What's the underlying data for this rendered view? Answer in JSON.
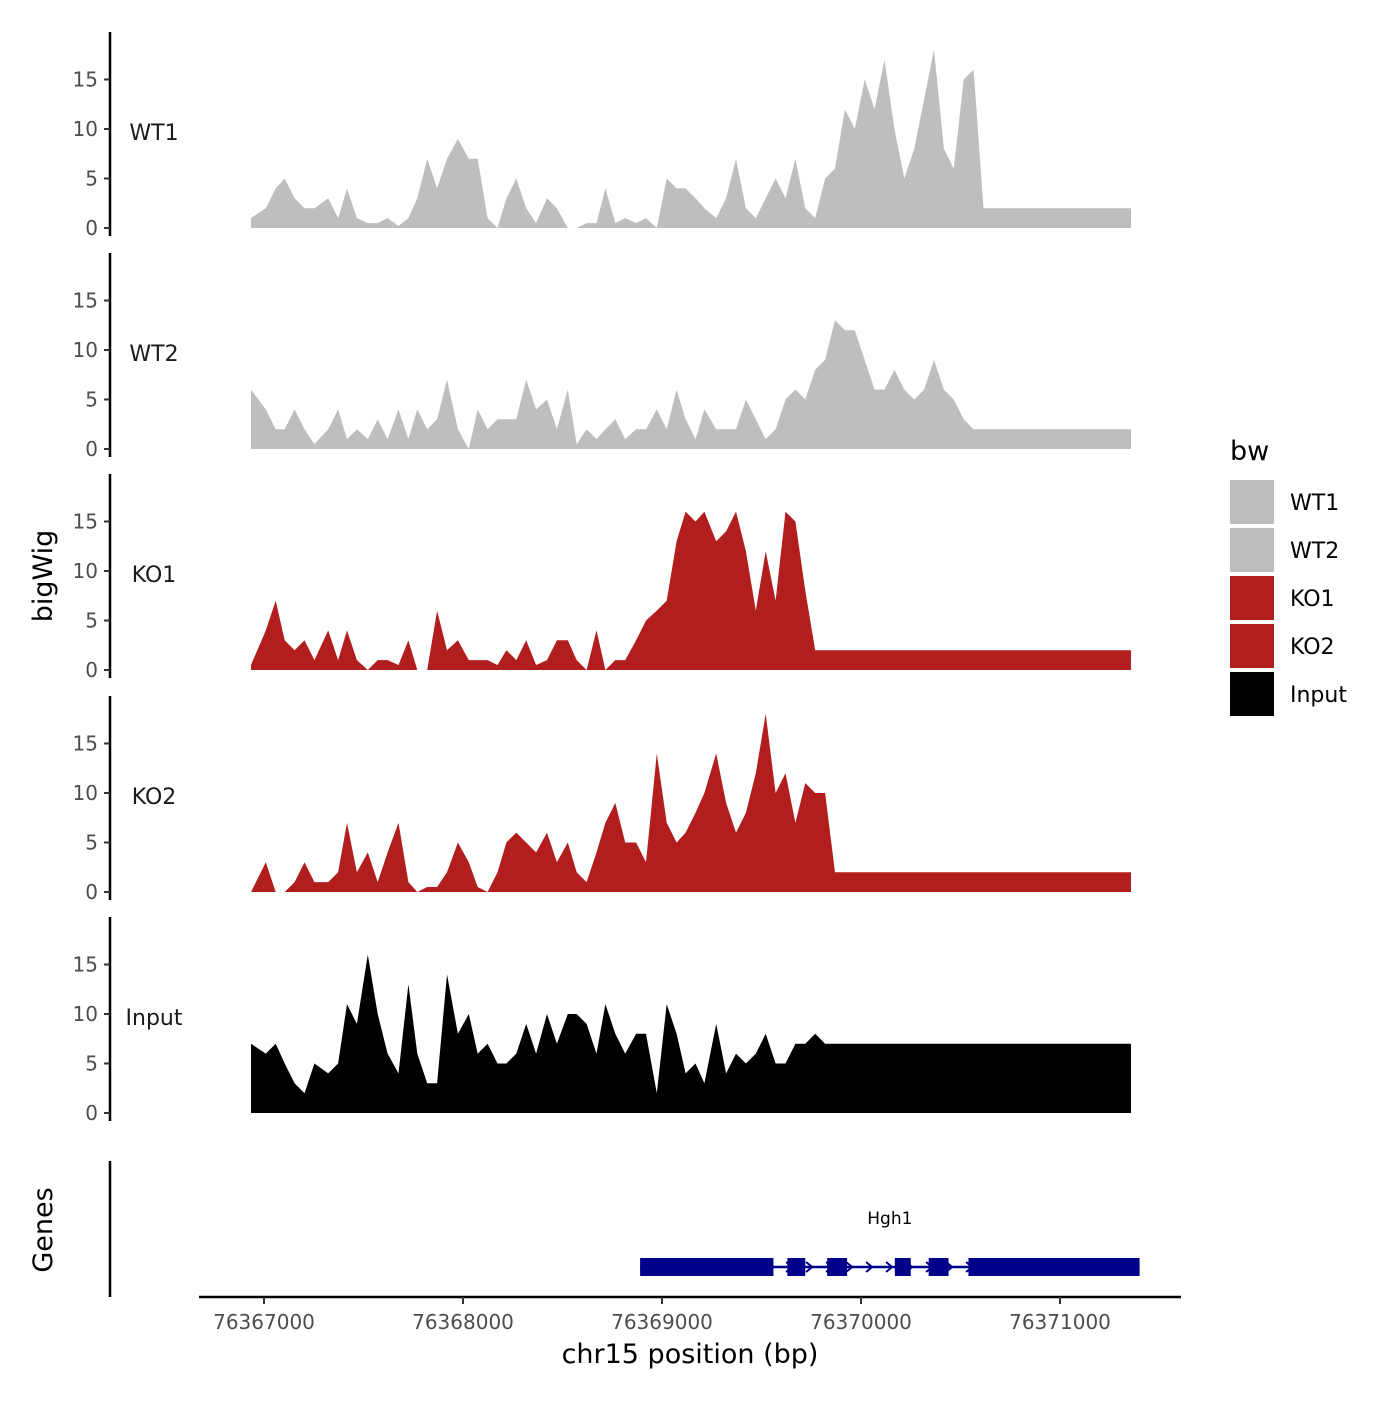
{
  "chart_data": {
    "type": "area",
    "title": "",
    "ylabel": "bigWig",
    "xlabel": "chr15 position (bp)",
    "genes_label": "Genes",
    "xlim": [
      76366700,
      76371600
    ],
    "ylim": [
      0,
      20
    ],
    "y_ticks": [
      0,
      5,
      10,
      15
    ],
    "x_ticks": [
      76367000,
      76368000,
      76369000,
      76370000,
      76371000
    ],
    "x_tick_labels": [
      "76367000",
      "76368000",
      "76369000",
      "76370000",
      "76371000"
    ],
    "legend": {
      "title": "bw",
      "position": "right",
      "entries": [
        {
          "label": "WT1",
          "color": "#bebebe"
        },
        {
          "label": "WT2",
          "color": "#bebebe"
        },
        {
          "label": "KO1",
          "color": "#b21e1e"
        },
        {
          "label": "KO2",
          "color": "#b21e1e"
        },
        {
          "label": "Input",
          "color": "#000000"
        }
      ]
    },
    "x_positions": [
      76366940,
      76367015,
      76367065,
      76367110,
      76367160,
      76367210,
      76367260,
      76367330,
      76367380,
      76367425,
      76367475,
      76367530,
      76367580,
      76367630,
      76367685,
      76367735,
      76367780,
      76367830,
      76367880,
      76367930,
      76367985,
      76368040,
      76368085,
      76368135,
      76368185,
      76368230,
      76368280,
      76368330,
      76368380,
      76368435,
      76368485,
      76368540,
      76368585,
      76368635,
      76368685,
      76368730,
      76368780,
      76368830,
      76368885,
      76368935,
      76368990,
      76369040,
      76369090,
      76369135,
      76369185,
      76369230,
      76369290,
      76369340,
      76369390,
      76369440,
      76369490,
      76369540,
      76369590,
      76369640,
      76369690,
      76369740,
      76369790,
      76369840,
      76369890,
      76369940,
      76369990,
      76370040,
      76370090,
      76370140,
      76370190,
      76370240,
      76370290,
      76370340,
      76370390,
      76370440,
      76370490,
      76370540,
      76370590,
      76370640,
      76370690,
      76370740,
      76370790,
      76370840,
      76370890,
      76370940,
      76370990,
      76371040,
      76371090,
      76371140,
      76371190,
      76371240,
      76371290,
      76371340,
      76371385
    ],
    "series": [
      {
        "name": "WT1",
        "color": "#bebebe",
        "values": [
          1,
          2,
          4,
          5,
          3,
          2,
          2,
          3,
          1,
          4,
          1,
          0.5,
          0.5,
          1,
          0.2,
          1,
          3,
          7,
          4,
          7,
          9,
          7,
          7,
          1,
          0,
          3,
          5,
          2,
          0.5,
          3,
          2,
          0,
          0,
          0.5,
          0.5,
          4,
          0.5,
          1,
          0.5,
          1,
          0,
          5,
          4,
          4,
          3,
          2,
          1,
          3,
          7,
          2,
          1,
          3,
          5,
          3,
          7,
          2,
          1,
          5,
          6,
          12,
          10,
          15,
          12,
          17,
          10,
          5,
          8,
          13,
          18,
          8,
          6,
          15,
          16,
          2,
          2,
          2,
          2,
          2,
          2,
          2,
          2,
          2,
          2,
          2,
          2,
          2,
          2,
          2,
          2
        ]
      },
      {
        "name": "WT2",
        "color": "#bebebe",
        "values": [
          6,
          4,
          2,
          2,
          4,
          2,
          0.5,
          2,
          4,
          1,
          2,
          1,
          3,
          1,
          4,
          1,
          4,
          2,
          3,
          7,
          2,
          0,
          4,
          2,
          3,
          3,
          3,
          7,
          4,
          5,
          2,
          6,
          0.5,
          2,
          1,
          2,
          3,
          1,
          2,
          2,
          4,
          2,
          6,
          3,
          1,
          4,
          2,
          2,
          2,
          5,
          3,
          1,
          2,
          5,
          6,
          5,
          8,
          9,
          13,
          12,
          12,
          9,
          6,
          6,
          8,
          6,
          5,
          6,
          9,
          6,
          5,
          3,
          2,
          2,
          2,
          2,
          2,
          2,
          2,
          2,
          2,
          2,
          2,
          2,
          2,
          2,
          2,
          2,
          2
        ]
      },
      {
        "name": "KO1",
        "color": "#b21e1e",
        "values": [
          0.5,
          4,
          7,
          3,
          2,
          3,
          1,
          4,
          1,
          4,
          1,
          0,
          1,
          1,
          0.5,
          3,
          0,
          0,
          6,
          2,
          3,
          1,
          1,
          1,
          0.5,
          2,
          1,
          3,
          0.5,
          1,
          3,
          3,
          1,
          0,
          4,
          0,
          1,
          1,
          3,
          5,
          6,
          7,
          13,
          16,
          15,
          16,
          13,
          14,
          16,
          12,
          6,
          12,
          7,
          16,
          15,
          8,
          2,
          2,
          2,
          2,
          2,
          2,
          2,
          2,
          2,
          2,
          2,
          2,
          2,
          2,
          2,
          2,
          2,
          2,
          2,
          2,
          2,
          2,
          2,
          2,
          2,
          2,
          2,
          2,
          2,
          2,
          2,
          2,
          2
        ]
      },
      {
        "name": "KO2",
        "color": "#b21e1e",
        "values": [
          0,
          3,
          0,
          0,
          1,
          3,
          1,
          1,
          2,
          7,
          2,
          4,
          1,
          4,
          7,
          1,
          0,
          0.5,
          0.5,
          2,
          5,
          3,
          0.5,
          0,
          2,
          5,
          6,
          5,
          4,
          6,
          3,
          5,
          2,
          1,
          4,
          7,
          9,
          5,
          5,
          3,
          14,
          7,
          5,
          6,
          8,
          10,
          14,
          9,
          6,
          8,
          12,
          18,
          10,
          12,
          7,
          11,
          10,
          10,
          2,
          2,
          2,
          2,
          2,
          2,
          2,
          2,
          2,
          2,
          2,
          2,
          2,
          2,
          2,
          2,
          2,
          2,
          2,
          2,
          2,
          2,
          2,
          2,
          2,
          2,
          2,
          2,
          2,
          2,
          2
        ]
      },
      {
        "name": "Input",
        "color": "#000000",
        "values": [
          7,
          6,
          7,
          5,
          3,
          2,
          5,
          4,
          5,
          11,
          9,
          16,
          10,
          6,
          4,
          13,
          6,
          3,
          3,
          14,
          8,
          10,
          6,
          7,
          5,
          5,
          6,
          9,
          6,
          10,
          7,
          10,
          10,
          9,
          6,
          11,
          8,
          6,
          8,
          8,
          2,
          11,
          8,
          4,
          5,
          3,
          9,
          4,
          6,
          5,
          6,
          8,
          5,
          5,
          7,
          7,
          8,
          7,
          7,
          7,
          7,
          7,
          7,
          7,
          7,
          7,
          7,
          7,
          7,
          7,
          7,
          7,
          7,
          7,
          7,
          7,
          7,
          7,
          7,
          7,
          7,
          7,
          7,
          7,
          7,
          7,
          7,
          7,
          7
        ]
      }
    ],
    "gene": {
      "name": "Hgh1",
      "strand": "+",
      "start": 76368890,
      "end": 76371400,
      "exons": [
        [
          76368890,
          76369560
        ],
        [
          76369630,
          76369720
        ],
        [
          76369830,
          76369930
        ],
        [
          76370170,
          76370250
        ],
        [
          76370340,
          76370440
        ],
        [
          76370540,
          76371400
        ]
      ]
    }
  }
}
